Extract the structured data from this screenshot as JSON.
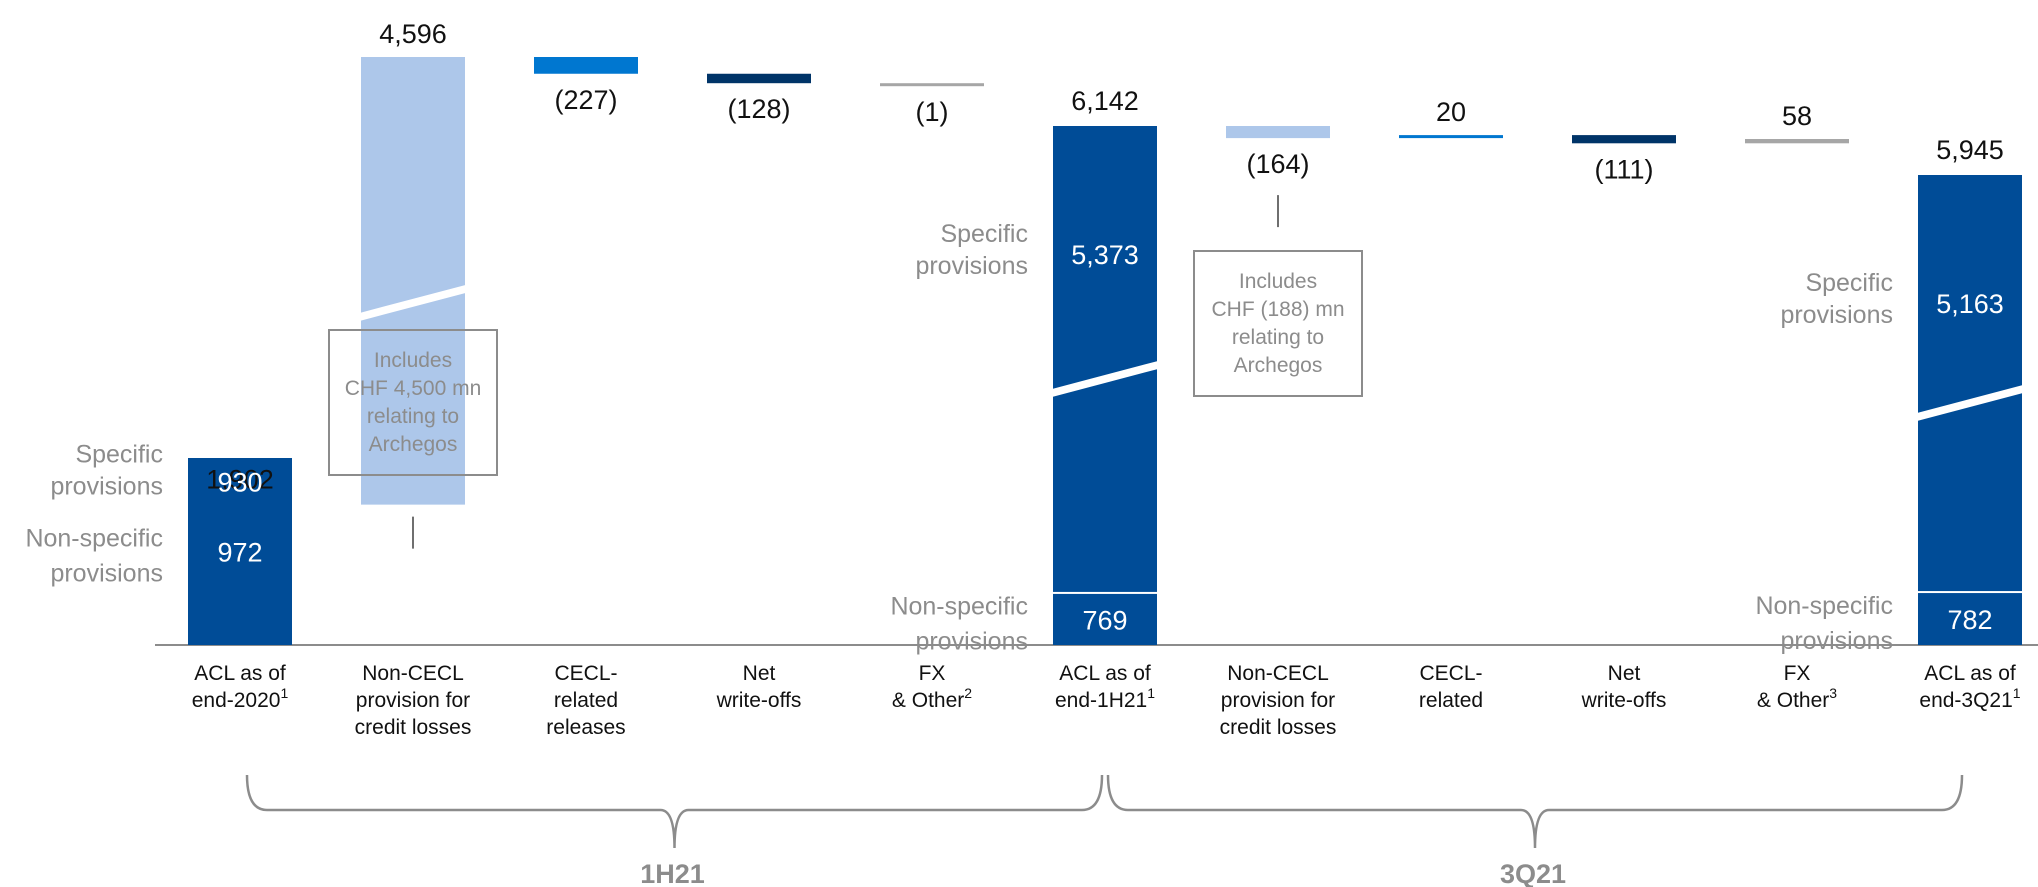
{
  "chart_data": {
    "type": "waterfall",
    "units_note": "",
    "ylim": [
      0,
      6400
    ],
    "colors": {
      "total": "#004c97",
      "non_cecl": "#adc7ea",
      "cecl": "#0077d0",
      "writeoffs": "#003468",
      "fx": "#a6a6a6",
      "axis": "#8c8c8c",
      "break_gap": "#ffffff"
    },
    "steps": [
      {
        "id": "acl-2020",
        "kind": "total",
        "label": [
          "ACL as of",
          "end-2020"
        ],
        "sup": "1",
        "value": 1902,
        "value_label": "1,902",
        "stack": [
          {
            "name": "Non-specific provisions",
            "value": 972,
            "label": "972"
          },
          {
            "name": "Specific provisions",
            "value": 930,
            "label": "930"
          }
        ],
        "side_labels": {
          "specific": [
            "Specific",
            "provisions"
          ],
          "nonspecific": [
            "Non-specific",
            "provisions"
          ]
        }
      },
      {
        "id": "noncecl-1h",
        "kind": "delta",
        "color_key": "non_cecl",
        "label": [
          "Non-CECL",
          "provision for",
          "credit losses"
        ],
        "value": 4596,
        "value_label": "4,596",
        "broken": true,
        "note": [
          "Includes",
          "CHF 4,500 mn",
          "relating to",
          "Archegos"
        ]
      },
      {
        "id": "cecl-1h",
        "kind": "delta",
        "color_key": "cecl",
        "label": [
          "CECL-",
          "related",
          "releases"
        ],
        "value": -227,
        "value_label": "(227)"
      },
      {
        "id": "wo-1h",
        "kind": "delta",
        "color_key": "writeoffs",
        "label": [
          "Net",
          "write-offs"
        ],
        "value": -128,
        "value_label": "(128)"
      },
      {
        "id": "fx-1h",
        "kind": "delta",
        "color_key": "fx",
        "label": [
          "FX",
          "& Other"
        ],
        "sup": "2",
        "value": -1,
        "value_label": "(1)"
      },
      {
        "id": "acl-1h21",
        "kind": "total",
        "label": [
          "ACL as of",
          "end-1H21"
        ],
        "sup": "1",
        "value": 6142,
        "value_label": "6,142",
        "broken": true,
        "stack": [
          {
            "name": "Non-specific provisions",
            "value": 769,
            "label": "769"
          },
          {
            "name": "Specific provisions",
            "value": 5373,
            "label": "5,373"
          }
        ],
        "side_labels": {
          "specific": [
            "Specific",
            "provisions"
          ],
          "nonspecific": [
            "Non-specific",
            "provisions"
          ]
        }
      },
      {
        "id": "noncecl-3q",
        "kind": "delta",
        "color_key": "non_cecl",
        "label": [
          "Non-CECL",
          "provision for",
          "credit losses"
        ],
        "value": -164,
        "value_label": "(164)",
        "note": [
          "Includes",
          "CHF (188) mn",
          "relating to",
          "Archegos"
        ]
      },
      {
        "id": "cecl-3q",
        "kind": "delta",
        "color_key": "cecl",
        "label": [
          "CECL-",
          "related"
        ],
        "value": 20,
        "value_label": "20"
      },
      {
        "id": "wo-3q",
        "kind": "delta",
        "color_key": "writeoffs",
        "label": [
          "Net",
          "write-offs"
        ],
        "value": -111,
        "value_label": "(111)"
      },
      {
        "id": "fx-3q",
        "kind": "delta",
        "color_key": "fx",
        "label": [
          "FX",
          "& Other"
        ],
        "sup": "3",
        "value": 58,
        "value_label": "58"
      },
      {
        "id": "acl-3q21",
        "kind": "total",
        "label": [
          "ACL as of",
          "end-3Q21"
        ],
        "sup": "1",
        "value": 5945,
        "value_label": "5,945",
        "broken": true,
        "stack": [
          {
            "name": "Non-specific provisions",
            "value": 782,
            "label": "782"
          },
          {
            "name": "Specific provisions",
            "value": 5163,
            "label": "5,163"
          }
        ],
        "side_labels": {
          "specific": [
            "Specific",
            "provisions"
          ],
          "nonspecific": [
            "Non-specific",
            "provisions"
          ]
        }
      }
    ],
    "periods": [
      {
        "label": "1H21",
        "from_step": 0,
        "to_step": 5
      },
      {
        "label": "3Q21",
        "from_step": 5,
        "to_step": 10
      }
    ]
  }
}
